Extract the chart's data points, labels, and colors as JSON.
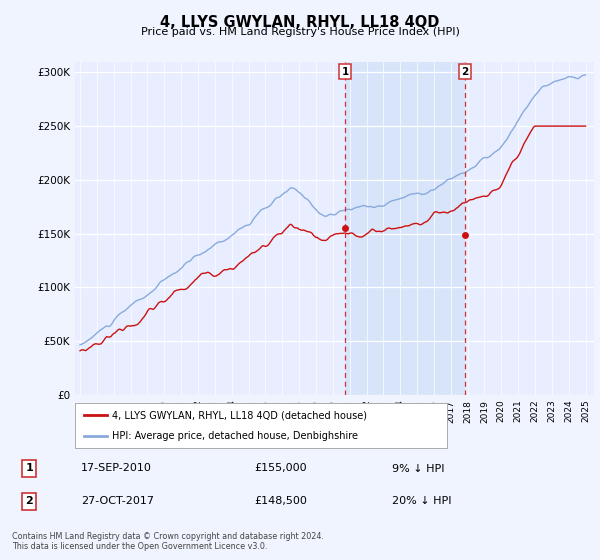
{
  "title": "4, LLYS GWYLAN, RHYL, LL18 4QD",
  "subtitle": "Price paid vs. HM Land Registry's House Price Index (HPI)",
  "hpi_color": "#88aadd",
  "price_color": "#cc1111",
  "vline_color": "#cc3333",
  "shade_color": "#ddeeff",
  "sale1_year": 2010.72,
  "sale1_price": 155000,
  "sale2_year": 2017.83,
  "sale2_price": 148500,
  "legend1": "4, LLYS GWYLAN, RHYL, LL18 4QD (detached house)",
  "legend2": "HPI: Average price, detached house, Denbighshire",
  "sale1_date": "17-SEP-2010",
  "sale1_price_label": "£155,000",
  "sale1_note": "9% ↓ HPI",
  "sale2_date": "27-OCT-2017",
  "sale2_price_label": "£148,500",
  "sale2_note": "20% ↓ HPI",
  "footer": "Contains HM Land Registry data © Crown copyright and database right 2024.\nThis data is licensed under the Open Government Licence v3.0.",
  "ylim_max": 310000,
  "ylim_min": 0,
  "xmin": 1994.7,
  "xmax": 2025.5,
  "bg_color": "#f0f4ff",
  "plot_bg_color": "#e8eeff"
}
